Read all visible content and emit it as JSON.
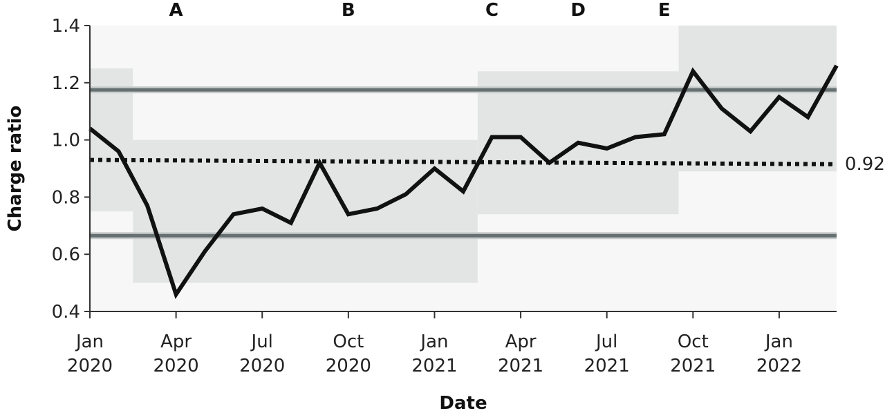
{
  "chart_data": {
    "type": "line",
    "xlabel": "Date",
    "ylabel": "Charge ratio",
    "ylim": [
      0.4,
      1.4
    ],
    "xlim": [
      "2020-01",
      "2022-03"
    ],
    "y_ticks": [
      "0.4",
      "0.6",
      "0.8",
      "1.0",
      "1.2",
      "1.4"
    ],
    "x_ticks": [
      {
        "date": "2020-01",
        "line1": "Jan",
        "line2": "2020"
      },
      {
        "date": "2020-04",
        "line1": "Apr",
        "line2": "2020"
      },
      {
        "date": "2020-07",
        "line1": "Jul",
        "line2": "2020"
      },
      {
        "date": "2020-10",
        "line1": "Oct",
        "line2": "2020"
      },
      {
        "date": "2021-01",
        "line1": "Jan",
        "line2": "2021"
      },
      {
        "date": "2021-04",
        "line1": "Apr",
        "line2": "2021"
      },
      {
        "date": "2021-07",
        "line1": "Jul",
        "line2": "2021"
      },
      {
        "date": "2021-10",
        "line1": "Oct",
        "line2": "2021"
      },
      {
        "date": "2022-01",
        "line1": "Jan",
        "line2": "2022"
      }
    ],
    "series": [
      {
        "x": [
          "2020-01",
          "2020-02",
          "2020-03",
          "2020-04",
          "2020-05",
          "2020-06",
          "2020-07",
          "2020-08",
          "2020-09",
          "2020-10",
          "2020-11",
          "2020-12",
          "2021-01",
          "2021-02",
          "2021-03",
          "2021-04",
          "2021-05",
          "2021-06",
          "2021-07",
          "2021-08",
          "2021-09",
          "2021-10",
          "2021-11",
          "2021-12",
          "2022-01",
          "2022-02",
          "2022-03"
        ],
        "values": [
          1.04,
          0.96,
          0.77,
          0.46,
          0.61,
          0.74,
          0.76,
          0.71,
          0.92,
          0.74,
          0.76,
          0.81,
          0.9,
          0.82,
          1.01,
          1.01,
          0.92,
          0.99,
          0.97,
          1.01,
          1.02,
          1.24,
          1.11,
          1.03,
          1.15,
          1.08,
          1.26
        ]
      }
    ],
    "reference_lines": [
      {
        "kind": "limit",
        "y": 1.175
      },
      {
        "kind": "limit",
        "y": 0.665
      },
      {
        "kind": "centre",
        "y_start": 0.93,
        "y_end": 0.915,
        "label": "0.92"
      }
    ],
    "bands": [
      {
        "from": "2020-01",
        "to": "2020-02.5",
        "ymin": 0.75,
        "ymax": 1.25
      },
      {
        "from": "2020-02.5",
        "to": "2021-02.5",
        "ymin": 0.5,
        "ymax": 1.0
      },
      {
        "from": "2021-02.5",
        "to": "2021-09.5",
        "ymin": 0.74,
        "ymax": 1.24
      },
      {
        "from": "2021-09.5",
        "to": "2022-03",
        "ymin": 0.89,
        "ymax": 1.4
      }
    ],
    "phases": [
      {
        "label": "A",
        "date": "2020-04"
      },
      {
        "label": "B",
        "date": "2020-10"
      },
      {
        "label": "C",
        "date": "2021-03"
      },
      {
        "label": "D",
        "date": "2021-06"
      },
      {
        "label": "E",
        "date": "2021-09"
      }
    ],
    "colors": {
      "plot_background": "#f7f7f7",
      "band": "#e3e5e5",
      "series": "#111111",
      "limit_line": "#667070",
      "centre_line": "#111111"
    }
  }
}
